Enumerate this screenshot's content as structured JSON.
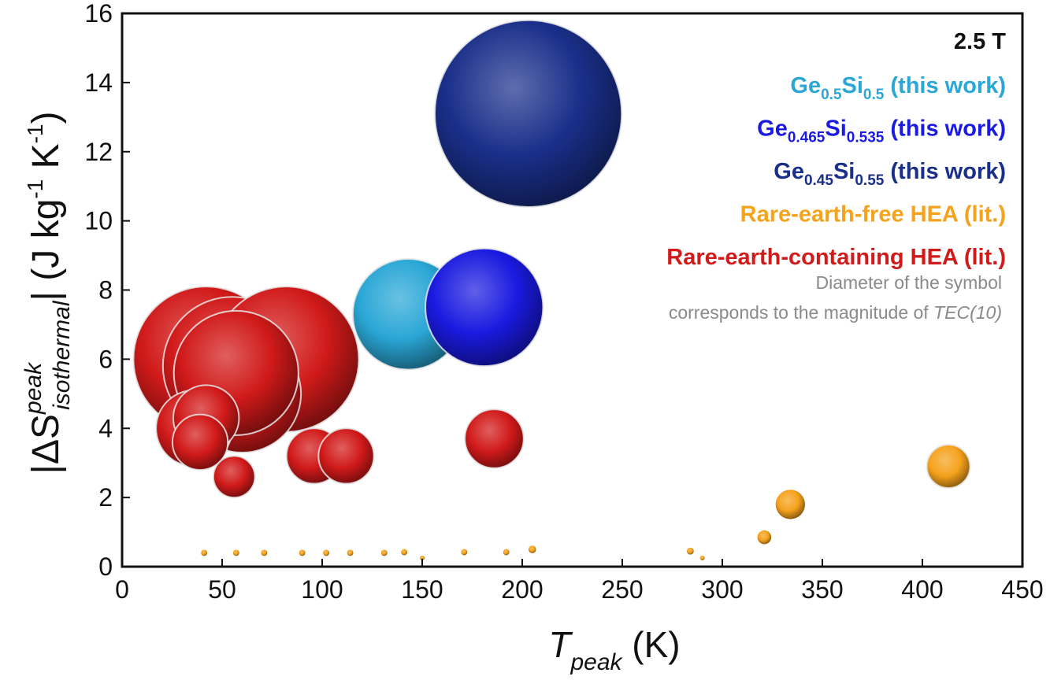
{
  "chart_data": {
    "type": "scatter",
    "title": "",
    "xlabel": {
      "main": "T",
      "sub": "peak",
      "unit": "(K)"
    },
    "ylabel": {
      "main": "|ΔS",
      "sup": "peak",
      "sub": "isothermal",
      "close": "|",
      "unit_open": "(J kg",
      "unit_kg_exp": "-1",
      "unit_K": " K",
      "unit_K_exp": "-1",
      "unit_close": ")"
    },
    "xlim": [
      0,
      450
    ],
    "ylim": [
      0,
      16
    ],
    "xticks": [
      "0",
      "50",
      "100",
      "150",
      "200",
      "250",
      "300",
      "350",
      "400",
      "450"
    ],
    "yticks": [
      "0",
      "2",
      "4",
      "6",
      "8",
      "10",
      "12",
      "14",
      "16"
    ],
    "grid": false,
    "legend": {
      "position": "top-right",
      "field_label": "2.5 T",
      "entries": [
        {
          "id": "gesi_05",
          "parts": [
            [
              "Ge",
              "n"
            ],
            [
              "0.5",
              "s"
            ],
            [
              "Si",
              "n"
            ],
            [
              "0.5",
              "s"
            ],
            [
              " (this work)",
              "n"
            ]
          ],
          "color": "#2aa7d6"
        },
        {
          "id": "gesi_0465",
          "parts": [
            [
              "Ge",
              "n"
            ],
            [
              "0.465",
              "s"
            ],
            [
              "Si",
              "n"
            ],
            [
              "0.535",
              "s"
            ],
            [
              " (this work)",
              "n"
            ]
          ],
          "color": "#1a1ae0"
        },
        {
          "id": "gesi_045",
          "parts": [
            [
              "Ge",
              "n"
            ],
            [
              "0.45",
              "s"
            ],
            [
              "Si",
              "n"
            ],
            [
              "0.55",
              "s"
            ],
            [
              " (this work)",
              "n"
            ]
          ],
          "color": "#1a2f8a"
        },
        {
          "id": "re_free",
          "parts": [
            [
              "Rare-earth-free HEA (lit.)",
              "n"
            ]
          ],
          "color": "#f5a21c"
        },
        {
          "id": "re_containing",
          "parts": [
            [
              "Rare-earth-containing HEA (lit.)",
              "n"
            ]
          ],
          "color": "#d11a1a"
        }
      ],
      "note_line1": "Diameter of the symbol",
      "note_line2": "corresponds to the magnitude of ",
      "note_italic": "TEC(10)"
    },
    "series": [
      {
        "name": "Ge0.45Si0.55 (this work)",
        "color": "#1a2f8a",
        "points": [
          {
            "x": 203,
            "y": 13.1,
            "tec": 5.4
          }
        ]
      },
      {
        "name": "Ge0.5Si0.5 (this work)",
        "color": "#2aa7d6",
        "points": [
          {
            "x": 143,
            "y": 7.3,
            "tec": 3.2
          }
        ]
      },
      {
        "name": "Ge0.465Si0.535 (this work)",
        "color": "#1a1ae0",
        "points": [
          {
            "x": 181,
            "y": 7.5,
            "tec": 3.4
          }
        ]
      },
      {
        "name": "Rare-earth-containing HEA (lit.)",
        "color": "#d11a1a",
        "points": [
          {
            "x": 42,
            "y": 6.0,
            "tec": 4.2
          },
          {
            "x": 55,
            "y": 5.8,
            "tec": 4.0
          },
          {
            "x": 82,
            "y": 6.0,
            "tec": 4.2
          },
          {
            "x": 60,
            "y": 5.0,
            "tec": 3.4
          },
          {
            "x": 57,
            "y": 5.6,
            "tec": 3.6
          },
          {
            "x": 36,
            "y": 4.0,
            "tec": 2.2
          },
          {
            "x": 42,
            "y": 4.3,
            "tec": 1.9
          },
          {
            "x": 39,
            "y": 3.6,
            "tec": 1.6
          },
          {
            "x": 96,
            "y": 3.2,
            "tec": 1.6
          },
          {
            "x": 112,
            "y": 3.2,
            "tec": 1.6
          },
          {
            "x": 186,
            "y": 3.7,
            "tec": 1.7
          },
          {
            "x": 56,
            "y": 2.6,
            "tec": 1.2
          }
        ]
      },
      {
        "name": "Rare-earth-free HEA (lit.)",
        "color": "#f5a21c",
        "points": [
          {
            "x": 413,
            "y": 2.9,
            "tec": 1.25
          },
          {
            "x": 334,
            "y": 1.8,
            "tec": 0.85
          },
          {
            "x": 321,
            "y": 0.85,
            "tec": 0.4
          },
          {
            "x": 41,
            "y": 0.4,
            "tec": 0.18
          },
          {
            "x": 57,
            "y": 0.4,
            "tec": 0.18
          },
          {
            "x": 71,
            "y": 0.4,
            "tec": 0.18
          },
          {
            "x": 90,
            "y": 0.4,
            "tec": 0.18
          },
          {
            "x": 102,
            "y": 0.4,
            "tec": 0.18
          },
          {
            "x": 114,
            "y": 0.4,
            "tec": 0.18
          },
          {
            "x": 131,
            "y": 0.4,
            "tec": 0.18
          },
          {
            "x": 141,
            "y": 0.42,
            "tec": 0.18
          },
          {
            "x": 150,
            "y": 0.25,
            "tec": 0.1
          },
          {
            "x": 171,
            "y": 0.42,
            "tec": 0.18
          },
          {
            "x": 192,
            "y": 0.42,
            "tec": 0.18
          },
          {
            "x": 205,
            "y": 0.5,
            "tec": 0.22
          },
          {
            "x": 284,
            "y": 0.45,
            "tec": 0.2
          },
          {
            "x": 290,
            "y": 0.25,
            "tec": 0.1
          }
        ]
      }
    ]
  }
}
